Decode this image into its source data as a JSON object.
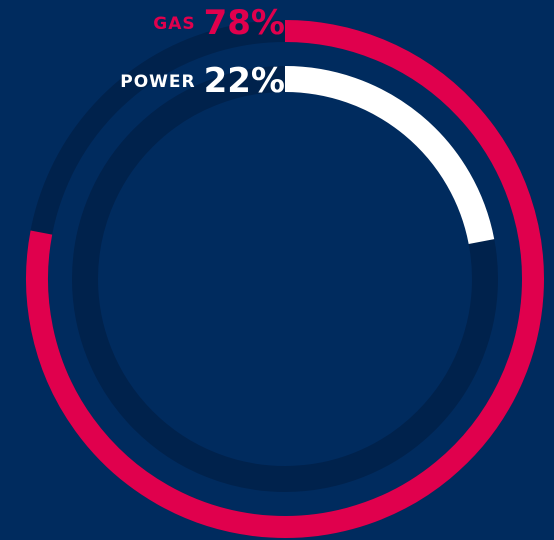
{
  "chart_data": {
    "type": "radial_bar",
    "categories": [
      "GAS",
      "POWER"
    ],
    "values": [
      78,
      22
    ],
    "value_labels": [
      "78%",
      "22%"
    ],
    "colors": [
      "#e0004d",
      "#ffffff"
    ],
    "ylim": [
      0,
      100
    ]
  }
}
